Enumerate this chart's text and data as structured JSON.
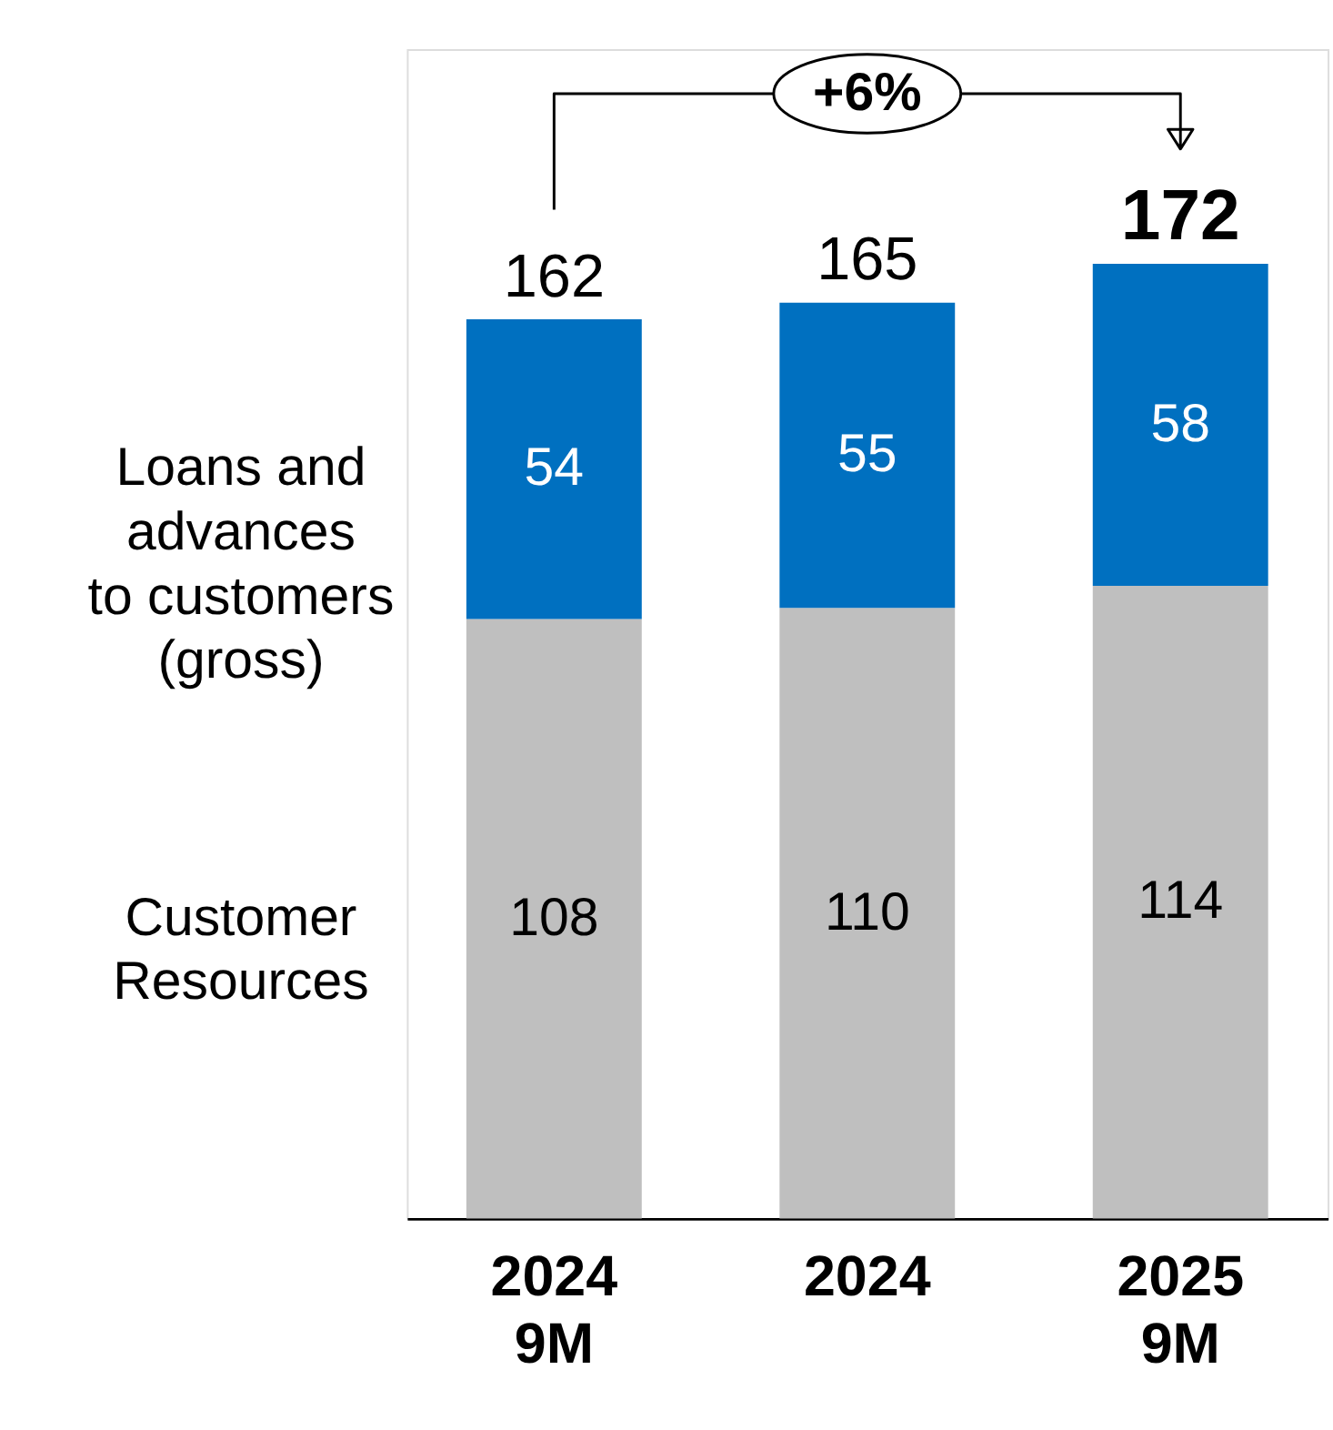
{
  "chart_data": {
    "type": "bar",
    "stacked": true,
    "categories": [
      "2024\n9M",
      "2024",
      "2025\n9M"
    ],
    "series": [
      {
        "name": "Customer\nResources",
        "color": "#bfbfbf",
        "values": [
          108,
          110,
          114
        ]
      },
      {
        "name": "Loans and\nadvances\nto customers\n(gross)",
        "color": "#0070c0",
        "values": [
          54,
          55,
          58
        ]
      }
    ],
    "data_labels": true,
    "totals": [
      "162",
      "165",
      "172"
    ],
    "annotations": [
      "+6%"
    ],
    "tick_labels": "x"
  }
}
